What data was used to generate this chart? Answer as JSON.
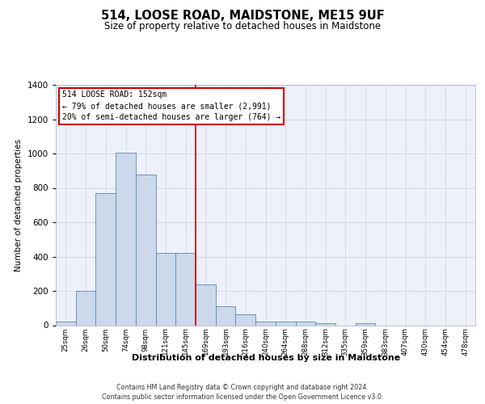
{
  "title": "514, LOOSE ROAD, MAIDSTONE, ME15 9UF",
  "subtitle": "Size of property relative to detached houses in Maidstone",
  "xlabel": "Distribution of detached houses by size in Maidstone",
  "ylabel": "Number of detached properties",
  "footer_line1": "Contains HM Land Registry data © Crown copyright and database right 2024.",
  "footer_line2": "Contains public sector information licensed under the Open Government Licence v3.0.",
  "bar_labels": [
    "25sqm",
    "26sqm",
    "50sqm",
    "74sqm",
    "98sqm",
    "121sqm",
    "145sqm",
    "169sqm",
    "193sqm",
    "216sqm",
    "240sqm",
    "264sqm",
    "288sqm",
    "312sqm",
    "335sqm",
    "359sqm",
    "383sqm",
    "407sqm",
    "430sqm",
    "454sqm",
    "478sqm"
  ],
  "bar_values": [
    20,
    200,
    770,
    1005,
    880,
    420,
    420,
    240,
    110,
    65,
    20,
    20,
    20,
    10,
    0,
    10,
    0,
    0,
    0,
    0,
    0
  ],
  "bar_color": "#ccd9ea",
  "bar_edgecolor": "#5588bb",
  "red_line_color": "#cc0000",
  "red_line_x": 6.5,
  "ylim_max": 1400,
  "yticks": [
    0,
    200,
    400,
    600,
    800,
    1000,
    1200,
    1400
  ],
  "annotation_title": "514 LOOSE ROAD: 152sqm",
  "annotation_line1": "← 79% of detached houses are smaller (2,991)",
  "annotation_line2": "20% of semi-detached houses are larger (764) →",
  "grid_color": "#c8cfe0",
  "bg_color": "#eef1fa",
  "title_fontsize": 10.5,
  "subtitle_fontsize": 8.5
}
